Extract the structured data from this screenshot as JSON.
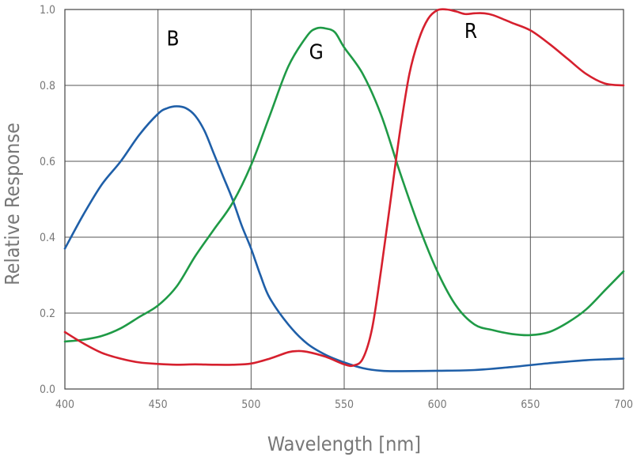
{
  "chart_data": {
    "type": "line",
    "title": "",
    "xlabel": "Wavelength [nm]",
    "ylabel": "Relative Response",
    "xlim": [
      400,
      700
    ],
    "ylim": [
      0.0,
      1.0
    ],
    "x_ticks": [
      "400",
      "450",
      "500",
      "550",
      "600",
      "650",
      "700"
    ],
    "y_ticks": [
      "0.0",
      "0.2",
      "0.4",
      "0.6",
      "0.8",
      "1.0"
    ],
    "grid": true,
    "annotations": [
      {
        "text": "B",
        "x": 458,
        "y": 0.905
      },
      {
        "text": "G",
        "x": 535,
        "y": 0.87
      },
      {
        "text": "R",
        "x": 618,
        "y": 0.925
      }
    ],
    "series": [
      {
        "color": "#1f5fa8",
        "x": [
          400,
          410,
          420,
          430,
          440,
          450,
          455,
          460,
          465,
          470,
          475,
          480,
          485,
          490,
          495,
          500,
          505,
          510,
          520,
          530,
          540,
          550,
          560,
          570,
          580,
          600,
          620,
          640,
          660,
          680,
          700
        ],
        "y": [
          0.37,
          0.46,
          0.54,
          0.6,
          0.67,
          0.725,
          0.74,
          0.745,
          0.74,
          0.72,
          0.68,
          0.62,
          0.56,
          0.5,
          0.43,
          0.37,
          0.3,
          0.24,
          0.17,
          0.12,
          0.09,
          0.07,
          0.055,
          0.048,
          0.047,
          0.048,
          0.05,
          0.058,
          0.068,
          0.076,
          0.08
        ]
      },
      {
        "color": "#1f9a46",
        "x": [
          400,
          410,
          420,
          430,
          440,
          450,
          460,
          470,
          480,
          490,
          500,
          510,
          520,
          530,
          535,
          540,
          545,
          550,
          560,
          570,
          580,
          590,
          600,
          610,
          620,
          630,
          640,
          650,
          660,
          670,
          680,
          690,
          700
        ],
        "y": [
          0.125,
          0.13,
          0.14,
          0.16,
          0.19,
          0.22,
          0.27,
          0.35,
          0.42,
          0.49,
          0.59,
          0.72,
          0.85,
          0.93,
          0.95,
          0.95,
          0.94,
          0.9,
          0.83,
          0.72,
          0.57,
          0.43,
          0.31,
          0.22,
          0.17,
          0.155,
          0.145,
          0.142,
          0.15,
          0.175,
          0.21,
          0.26,
          0.31
        ]
      },
      {
        "color": "#d6202e",
        "x": [
          400,
          410,
          420,
          430,
          440,
          450,
          460,
          470,
          480,
          490,
          500,
          510,
          520,
          525,
          530,
          540,
          550,
          555,
          560,
          565,
          570,
          575,
          580,
          585,
          590,
          595,
          600,
          605,
          610,
          615,
          620,
          625,
          630,
          640,
          650,
          660,
          670,
          680,
          690,
          700
        ],
        "y": [
          0.15,
          0.12,
          0.095,
          0.08,
          0.07,
          0.066,
          0.064,
          0.065,
          0.064,
          0.064,
          0.067,
          0.08,
          0.097,
          0.1,
          0.098,
          0.085,
          0.065,
          0.062,
          0.08,
          0.16,
          0.32,
          0.5,
          0.68,
          0.83,
          0.92,
          0.975,
          0.998,
          1.0,
          0.995,
          0.988,
          0.99,
          0.99,
          0.985,
          0.965,
          0.945,
          0.91,
          0.87,
          0.83,
          0.805,
          0.8
        ]
      }
    ]
  }
}
